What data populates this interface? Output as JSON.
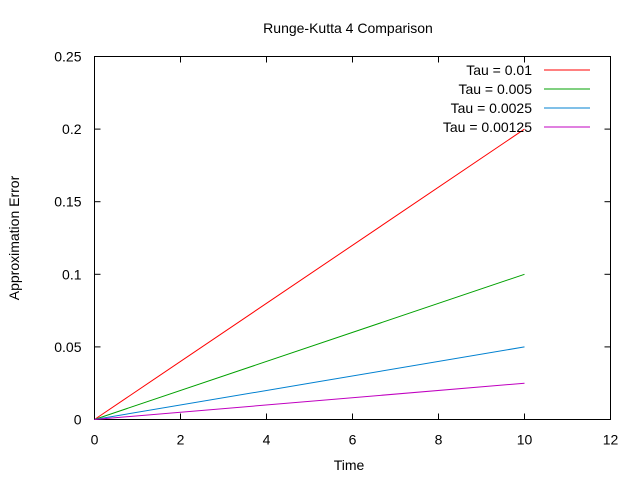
{
  "chart_data": {
    "type": "line",
    "title": "Runge-Kutta 4 Comparison",
    "xlabel": "Time",
    "ylabel": "Approximation Error",
    "xlim": [
      0,
      12
    ],
    "ylim": [
      0,
      0.25
    ],
    "xticks": [
      "0",
      "2",
      "4",
      "6",
      "8",
      "10",
      "12"
    ],
    "yticks": [
      "0",
      "0.05",
      "0.1",
      "0.15",
      "0.2",
      "0.25"
    ],
    "grid": false,
    "legend_position": "top-right",
    "series": [
      {
        "name": "Tau = 0.01",
        "color": "#ff0000",
        "x": [
          0,
          10
        ],
        "y": [
          0,
          0.2
        ]
      },
      {
        "name": "Tau = 0.005",
        "color": "#00a000",
        "x": [
          0,
          10
        ],
        "y": [
          0,
          0.1
        ]
      },
      {
        "name": "Tau = 0.0025",
        "color": "#0080d0",
        "x": [
          0,
          10
        ],
        "y": [
          0,
          0.05
        ]
      },
      {
        "name": "Tau = 0.00125",
        "color": "#c000c0",
        "x": [
          0,
          10
        ],
        "y": [
          0,
          0.025
        ]
      }
    ]
  }
}
